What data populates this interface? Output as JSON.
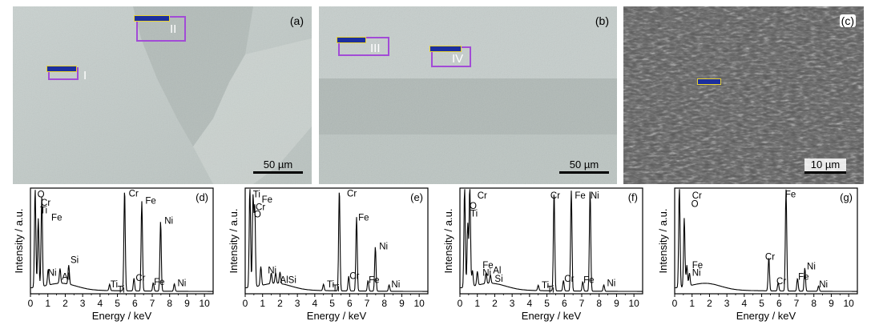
{
  "panels": {
    "a": {
      "tag": "(a)",
      "scale": "50 µm",
      "regions": [
        "I",
        "II"
      ]
    },
    "b": {
      "tag": "(b)",
      "scale": "50 µm",
      "regions": [
        "III",
        "IV"
      ]
    },
    "c": {
      "tag": "(c)",
      "scale": "10 µm"
    }
  },
  "chart_data": [
    {
      "type": "line",
      "panel": "(d)",
      "xlabel": "Energy / keV",
      "ylabel": "Intensity / a.u.",
      "xlim": [
        0,
        10.5
      ],
      "xticks": [
        0,
        1,
        2,
        3,
        4,
        5,
        6,
        7,
        8,
        9,
        10
      ],
      "peaks": [
        {
          "x": 0.27,
          "y": 0.93
        },
        {
          "x": 0.45,
          "y": 0.65
        },
        {
          "x": 0.65,
          "y": 0.85
        },
        {
          "x": 1.02,
          "y": 0.15
        },
        {
          "x": 1.7,
          "y": 0.14
        },
        {
          "x": 2.2,
          "y": 0.18
        },
        {
          "x": 4.55,
          "y": 0.06
        },
        {
          "x": 5.41,
          "y": 0.96
        },
        {
          "x": 5.95,
          "y": 0.12
        },
        {
          "x": 6.4,
          "y": 0.85
        },
        {
          "x": 7.06,
          "y": 0.08
        },
        {
          "x": 7.48,
          "y": 0.66
        },
        {
          "x": 8.27,
          "y": 0.07
        }
      ],
      "labels": [
        {
          "text": "O",
          "x": 0.4,
          "y": 0.98
        },
        {
          "text": "Cr",
          "x": 0.6,
          "y": 0.9
        },
        {
          "text": "Ti",
          "x": 0.55,
          "y": 0.83
        },
        {
          "text": "Fe",
          "x": 1.2,
          "y": 0.76
        },
        {
          "text": "Si",
          "x": 2.3,
          "y": 0.36
        },
        {
          "text": "Ni",
          "x": 1.0,
          "y": 0.24
        },
        {
          "text": "Al",
          "x": 1.8,
          "y": 0.2
        },
        {
          "text": "Ti",
          "x": 4.6,
          "y": 0.13
        },
        {
          "text": "Ti",
          "x": 5.0,
          "y": 0.08
        },
        {
          "text": "Cr",
          "x": 5.65,
          "y": 0.99
        },
        {
          "text": "Fe",
          "x": 6.6,
          "y": 0.92
        },
        {
          "text": "Cr",
          "x": 6.05,
          "y": 0.19
        },
        {
          "text": "Ni",
          "x": 7.7,
          "y": 0.73
        },
        {
          "text": "Fe",
          "x": 7.1,
          "y": 0.15
        },
        {
          "text": "Ni",
          "x": 8.45,
          "y": 0.14
        }
      ]
    },
    {
      "type": "line",
      "panel": "(e)",
      "xlabel": "Energy / keV",
      "ylabel": "Intensity / a.u.",
      "xlim": [
        0,
        10.5
      ],
      "xticks": [
        0,
        1,
        2,
        3,
        4,
        5,
        6,
        7,
        8,
        9,
        10
      ],
      "peaks": [
        {
          "x": 0.27,
          "y": 0.95
        },
        {
          "x": 0.45,
          "y": 0.85
        },
        {
          "x": 0.55,
          "y": 0.75
        },
        {
          "x": 0.9,
          "y": 0.18
        },
        {
          "x": 1.5,
          "y": 0.1
        },
        {
          "x": 1.75,
          "y": 0.1
        },
        {
          "x": 2.0,
          "y": 0.11
        },
        {
          "x": 4.5,
          "y": 0.06
        },
        {
          "x": 5.41,
          "y": 0.96
        },
        {
          "x": 5.95,
          "y": 0.14
        },
        {
          "x": 6.4,
          "y": 0.7
        },
        {
          "x": 7.06,
          "y": 0.1
        },
        {
          "x": 7.48,
          "y": 0.42
        },
        {
          "x": 8.27,
          "y": 0.06
        }
      ],
      "labels": [
        {
          "text": "Ti",
          "x": 0.45,
          "y": 0.98
        },
        {
          "text": "Fe",
          "x": 0.95,
          "y": 0.93
        },
        {
          "text": "Cr",
          "x": 0.6,
          "y": 0.86
        },
        {
          "text": "O",
          "x": 0.5,
          "y": 0.79
        },
        {
          "text": "Ni",
          "x": 1.3,
          "y": 0.26
        },
        {
          "text": "AlSi",
          "x": 2.0,
          "y": 0.17
        },
        {
          "text": "Ti",
          "x": 4.7,
          "y": 0.13
        },
        {
          "text": "Ti",
          "x": 5.0,
          "y": 0.09
        },
        {
          "text": "Cr",
          "x": 5.85,
          "y": 0.99
        },
        {
          "text": "Fe",
          "x": 6.5,
          "y": 0.76
        },
        {
          "text": "Cr",
          "x": 6.0,
          "y": 0.21
        },
        {
          "text": "Ni",
          "x": 7.7,
          "y": 0.49
        },
        {
          "text": "Fe",
          "x": 7.1,
          "y": 0.17
        },
        {
          "text": "Ni",
          "x": 8.4,
          "y": 0.13
        }
      ]
    },
    {
      "type": "line",
      "panel": "(f)",
      "xlabel": "Energy / keV",
      "ylabel": "Intensity / a.u.",
      "xlim": [
        0,
        10.5
      ],
      "xticks": [
        0,
        1,
        2,
        3,
        4,
        5,
        6,
        7,
        8,
        9,
        10
      ],
      "peaks": [
        {
          "x": 0.27,
          "y": 0.95
        },
        {
          "x": 0.45,
          "y": 0.6
        },
        {
          "x": 0.57,
          "y": 0.97
        },
        {
          "x": 0.72,
          "y": 0.15
        },
        {
          "x": 1.0,
          "y": 0.13
        },
        {
          "x": 1.5,
          "y": 0.1
        },
        {
          "x": 1.75,
          "y": 0.08
        },
        {
          "x": 4.5,
          "y": 0.05
        },
        {
          "x": 5.41,
          "y": 0.94
        },
        {
          "x": 5.95,
          "y": 0.1
        },
        {
          "x": 6.4,
          "y": 0.95
        },
        {
          "x": 7.06,
          "y": 0.09
        },
        {
          "x": 7.48,
          "y": 0.95
        },
        {
          "x": 8.27,
          "y": 0.06
        }
      ],
      "labels": [
        {
          "text": "Cr",
          "x": 1.0,
          "y": 0.97
        },
        {
          "text": "O",
          "x": 0.55,
          "y": 0.87
        },
        {
          "text": "Ti",
          "x": 0.6,
          "y": 0.8
        },
        {
          "text": "Fe",
          "x": 1.3,
          "y": 0.31
        },
        {
          "text": "Ni",
          "x": 1.3,
          "y": 0.24
        },
        {
          "text": "Al",
          "x": 1.9,
          "y": 0.26
        },
        {
          "text": "Si",
          "x": 2.0,
          "y": 0.18
        },
        {
          "text": "Ti",
          "x": 4.7,
          "y": 0.12
        },
        {
          "text": "Ti",
          "x": 5.0,
          "y": 0.08
        },
        {
          "text": "Cr",
          "x": 5.2,
          "y": 0.97
        },
        {
          "text": "Fe",
          "x": 6.6,
          "y": 0.97
        },
        {
          "text": "Ni",
          "x": 7.5,
          "y": 0.97
        },
        {
          "text": "Cr",
          "x": 6.0,
          "y": 0.18
        },
        {
          "text": "Fe",
          "x": 7.1,
          "y": 0.17
        },
        {
          "text": "Ni",
          "x": 8.45,
          "y": 0.14
        }
      ]
    },
    {
      "type": "line",
      "panel": "(g)",
      "xlabel": "Energy / keV",
      "ylabel": "Intensity / a.u.",
      "xlim": [
        0,
        10.5
      ],
      "xticks": [
        0,
        1,
        2,
        3,
        4,
        5,
        6,
        7,
        8,
        9,
        10
      ],
      "peaks": [
        {
          "x": 0.27,
          "y": 0.95
        },
        {
          "x": 0.55,
          "y": 0.65
        },
        {
          "x": 0.7,
          "y": 0.2
        },
        {
          "x": 0.85,
          "y": 0.12
        },
        {
          "x": 5.41,
          "y": 0.32
        },
        {
          "x": 5.95,
          "y": 0.08
        },
        {
          "x": 6.4,
          "y": 0.96
        },
        {
          "x": 7.06,
          "y": 0.12
        },
        {
          "x": 7.48,
          "y": 0.22
        },
        {
          "x": 8.27,
          "y": 0.05
        }
      ],
      "labels": [
        {
          "text": "Cr",
          "x": 1.0,
          "y": 0.97
        },
        {
          "text": "O",
          "x": 0.95,
          "y": 0.89
        },
        {
          "text": "Fe",
          "x": 1.0,
          "y": 0.31
        },
        {
          "text": "Ni",
          "x": 1.0,
          "y": 0.24
        },
        {
          "text": "Cr",
          "x": 5.2,
          "y": 0.39
        },
        {
          "text": "Fe",
          "x": 6.35,
          "y": 0.98
        },
        {
          "text": "Cr",
          "x": 5.85,
          "y": 0.16
        },
        {
          "text": "Fe",
          "x": 7.1,
          "y": 0.2
        },
        {
          "text": "Ni",
          "x": 7.6,
          "y": 0.3
        },
        {
          "text": "Ni",
          "x": 8.3,
          "y": 0.13
        }
      ]
    }
  ]
}
